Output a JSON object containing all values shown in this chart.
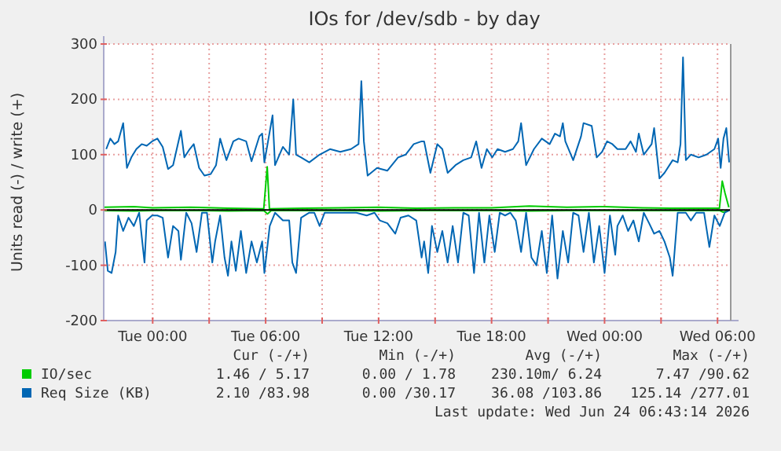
{
  "chart_data": {
    "type": "line",
    "title": "IOs for /dev/sdb - by day",
    "ylabel": "Units read (-) / write (+)",
    "xlim": [
      "2026-06-22T21:24",
      "2026-06-24T06:42"
    ],
    "xticks": [
      {
        "value": "2026-06-23T00:00",
        "label": "Tue 00:00"
      },
      {
        "value": "2026-06-23T03:00",
        "label": null
      },
      {
        "value": "2026-06-23T06:00",
        "label": "Tue 06:00"
      },
      {
        "value": "2026-06-23T09:00",
        "label": null
      },
      {
        "value": "2026-06-23T12:00",
        "label": "Tue 12:00"
      },
      {
        "value": "2026-06-23T15:00",
        "label": null
      },
      {
        "value": "2026-06-23T18:00",
        "label": "Tue 18:00"
      },
      {
        "value": "2026-06-23T21:00",
        "label": null
      },
      {
        "value": "2026-06-24T00:00",
        "label": "Wed 00:00"
      },
      {
        "value": "2026-06-24T03:00",
        "label": null
      },
      {
        "value": "2026-06-24T06:00",
        "label": "Wed 06:00"
      }
    ],
    "ylim": [
      -200,
      300
    ],
    "yticks": [
      -200,
      -100,
      0,
      100,
      200,
      300
    ],
    "grid": true,
    "legend": "bottom",
    "marker": "none",
    "line_style": "solid",
    "ref_lines": [
      {
        "axis": "y",
        "value": 0,
        "label": null,
        "color": "#000000"
      }
    ],
    "series": [
      {
        "color": "#00cc00",
        "x": [
          "2026-06-22T21:24",
          "2026-06-22T23:00",
          "2026-06-23T00:00",
          "2026-06-23T02:00",
          "2026-06-23T04:00",
          "2026-06-23T05:54",
          "2026-06-23T06:06",
          "2026-06-23T06:18",
          "2026-06-23T08:00",
          "2026-06-23T10:00",
          "2026-06-23T12:00",
          "2026-06-23T14:00",
          "2026-06-23T16:00",
          "2026-06-23T18:00",
          "2026-06-23T20:00",
          "2026-06-23T22:00",
          "2026-06-24T00:00",
          "2026-06-24T02:00",
          "2026-06-24T04:00",
          "2026-06-24T06:06",
          "2026-06-24T06:18",
          "2026-06-24T06:36"
        ],
        "values": [
          -1,
          -2,
          -1,
          -1,
          -2,
          -1,
          -7,
          -1,
          -1,
          -1,
          -2,
          -1,
          -1,
          -1,
          -2,
          -1,
          -1,
          -1,
          -1,
          -1,
          -4,
          -1
        ]
      },
      {
        "name": "IO/sec",
        "color": "#00cc00",
        "x": [
          "2026-06-22T21:24",
          "2026-06-22T23:00",
          "2026-06-23T00:00",
          "2026-06-23T02:00",
          "2026-06-23T04:00",
          "2026-06-23T05:54",
          "2026-06-23T06:05",
          "2026-06-23T06:12",
          "2026-06-23T08:00",
          "2026-06-23T10:00",
          "2026-06-23T12:00",
          "2026-06-23T14:00",
          "2026-06-23T16:00",
          "2026-06-23T18:00",
          "2026-06-23T20:00",
          "2026-06-23T22:00",
          "2026-06-24T00:00",
          "2026-06-24T02:00",
          "2026-06-24T03:30",
          "2026-06-24T05:00",
          "2026-06-24T06:06",
          "2026-06-24T06:15",
          "2026-06-24T06:24",
          "2026-06-24T06:36"
        ],
        "values": [
          5,
          6,
          4,
          5,
          3,
          2,
          78,
          2,
          3,
          4,
          5,
          3,
          4,
          4,
          7,
          5,
          6,
          4,
          3,
          3,
          3,
          52,
          30,
          5
        ]
      },
      {
        "color": "#0066b3",
        "x": [
          "2026-06-22T21:28",
          "2026-06-22T21:37",
          "2026-06-22T21:49",
          "2026-06-22T22:02",
          "2026-06-22T22:10",
          "2026-06-22T22:26",
          "2026-06-22T22:43",
          "2026-06-22T23:00",
          "2026-06-22T23:17",
          "2026-06-22T23:34",
          "2026-06-22T23:41",
          "2026-06-22T23:58",
          "2026-06-23T00:15",
          "2026-06-23T00:32",
          "2026-06-23T00:49",
          "2026-06-23T01:05",
          "2026-06-23T01:22",
          "2026-06-23T01:30",
          "2026-06-23T01:47",
          "2026-06-23T02:04",
          "2026-06-23T02:20",
          "2026-06-23T02:37",
          "2026-06-23T02:53",
          "2026-06-23T03:10",
          "2026-06-23T03:19",
          "2026-06-23T03:35",
          "2026-06-23T03:49",
          "2026-06-23T04:00",
          "2026-06-23T04:11",
          "2026-06-23T04:25",
          "2026-06-23T04:41",
          "2026-06-23T04:58",
          "2026-06-23T05:15",
          "2026-06-23T05:32",
          "2026-06-23T05:49",
          "2026-06-23T05:56",
          "2026-06-23T06:13",
          "2026-06-23T06:30",
          "2026-06-23T06:55",
          "2026-06-23T07:15",
          "2026-06-23T07:25",
          "2026-06-23T07:37",
          "2026-06-23T07:53",
          "2026-06-23T08:19",
          "2026-06-23T08:35",
          "2026-06-23T08:52",
          "2026-06-23T09:08",
          "2026-06-23T09:41",
          "2026-06-23T10:15",
          "2026-06-23T10:49",
          "2026-06-23T11:22",
          "2026-06-23T11:47",
          "2026-06-23T12:04",
          "2026-06-23T12:28",
          "2026-06-23T12:53",
          "2026-06-23T13:10",
          "2026-06-23T13:35",
          "2026-06-23T14:00",
          "2026-06-23T14:17",
          "2026-06-23T14:25",
          "2026-06-23T14:38",
          "2026-06-23T14:50",
          "2026-06-23T15:07",
          "2026-06-23T15:23",
          "2026-06-23T15:40",
          "2026-06-23T15:56",
          "2026-06-23T16:13",
          "2026-06-23T16:30",
          "2026-06-23T16:47",
          "2026-06-23T17:04",
          "2026-06-23T17:20",
          "2026-06-23T17:37",
          "2026-06-23T17:53",
          "2026-06-23T18:10",
          "2026-06-23T18:26",
          "2026-06-23T18:43",
          "2026-06-23T19:00",
          "2026-06-23T19:17",
          "2026-06-23T19:34",
          "2026-06-23T19:50",
          "2026-06-23T20:07",
          "2026-06-23T20:23",
          "2026-06-23T20:40",
          "2026-06-23T20:56",
          "2026-06-23T21:13",
          "2026-06-23T21:30",
          "2026-06-23T21:47",
          "2026-06-23T22:04",
          "2026-06-23T22:20",
          "2026-06-23T22:37",
          "2026-06-23T22:53",
          "2026-06-23T23:10",
          "2026-06-23T23:26",
          "2026-06-23T23:43",
          "2026-06-24T00:00",
          "2026-06-24T00:17",
          "2026-06-24T00:34",
          "2026-06-24T00:41",
          "2026-06-24T00:58",
          "2026-06-24T01:15",
          "2026-06-24T01:32",
          "2026-06-24T01:49",
          "2026-06-24T02:05",
          "2026-06-24T02:22",
          "2026-06-24T02:38",
          "2026-06-24T02:55",
          "2026-06-24T03:11",
          "2026-06-24T03:28",
          "2026-06-24T03:37",
          "2026-06-24T03:53",
          "2026-06-24T04:19",
          "2026-06-24T04:35",
          "2026-06-24T04:52",
          "2026-06-24T05:17",
          "2026-06-24T05:34",
          "2026-06-24T05:50",
          "2026-06-24T06:07",
          "2026-06-24T06:23",
          "2026-06-24T06:40"
        ],
        "values": [
          -57,
          -110,
          -114,
          -76,
          -10,
          -38,
          -14,
          -29,
          -5,
          -95,
          -19,
          -10,
          -10,
          -14,
          -86,
          -29,
          -38,
          -90,
          -5,
          -24,
          -76,
          -5,
          -5,
          -95,
          -57,
          -10,
          -86,
          -119,
          -57,
          -110,
          -38,
          -114,
          -57,
          -95,
          -57,
          -114,
          -29,
          -5,
          -19,
          -19,
          -95,
          -114,
          -14,
          -5,
          -5,
          -29,
          -5,
          -5,
          -5,
          -5,
          -10,
          -5,
          -19,
          -24,
          -43,
          -14,
          -10,
          -19,
          -86,
          -57,
          -114,
          -29,
          -76,
          -38,
          -95,
          -29,
          -95,
          -5,
          -10,
          -114,
          -5,
          -95,
          -10,
          -76,
          -5,
          -10,
          -5,
          -19,
          -76,
          -5,
          -86,
          -100,
          -38,
          -114,
          -10,
          -124,
          -38,
          -95,
          -5,
          -10,
          -76,
          -5,
          -95,
          -29,
          -114,
          -10,
          -81,
          -29,
          -10,
          -38,
          -19,
          -57,
          -5,
          -24,
          -43,
          -38,
          -57,
          -86,
          -119,
          -5,
          -5,
          -19,
          -5,
          -5,
          -67,
          -10,
          -29,
          -5,
          0
        ]
      },
      {
        "name": "Req Size (KB)",
        "color": "#0066b3",
        "x": [
          "2026-06-22T21:32",
          "2026-06-22T21:45",
          "2026-06-22T21:58",
          "2026-06-22T22:10",
          "2026-06-22T22:26",
          "2026-06-22T22:38",
          "2026-06-22T22:52",
          "2026-06-22T23:08",
          "2026-06-22T23:25",
          "2026-06-22T23:41",
          "2026-06-22T23:58",
          "2026-06-23T00:15",
          "2026-06-23T00:32",
          "2026-06-23T00:49",
          "2026-06-23T01:05",
          "2026-06-23T01:30",
          "2026-06-23T01:41",
          "2026-06-23T01:58",
          "2026-06-23T02:11",
          "2026-06-23T02:28",
          "2026-06-23T02:45",
          "2026-06-23T03:05",
          "2026-06-23T03:22",
          "2026-06-23T03:35",
          "2026-06-23T03:55",
          "2026-06-23T04:17",
          "2026-06-23T04:34",
          "2026-06-23T04:58",
          "2026-06-23T05:15",
          "2026-06-23T05:40",
          "2026-06-23T05:49",
          "2026-06-23T05:56",
          "2026-06-23T06:22",
          "2026-06-23T06:30",
          "2026-06-23T06:55",
          "2026-06-23T07:15",
          "2026-06-23T07:28",
          "2026-06-23T07:37",
          "2026-06-23T07:53",
          "2026-06-23T08:19",
          "2026-06-23T08:52",
          "2026-06-23T09:25",
          "2026-06-23T09:58",
          "2026-06-23T10:32",
          "2026-06-23T10:56",
          "2026-06-23T11:05",
          "2026-06-23T11:13",
          "2026-06-23T11:25",
          "2026-06-23T11:55",
          "2026-06-23T12:28",
          "2026-06-23T13:02",
          "2026-06-23T13:26",
          "2026-06-23T13:52",
          "2026-06-23T14:17",
          "2026-06-23T14:25",
          "2026-06-23T14:45",
          "2026-06-23T15:07",
          "2026-06-23T15:23",
          "2026-06-23T15:40",
          "2026-06-23T16:05",
          "2026-06-23T16:30",
          "2026-06-23T16:55",
          "2026-06-23T17:11",
          "2026-06-23T17:28",
          "2026-06-23T17:45",
          "2026-06-23T18:02",
          "2026-06-23T18:19",
          "2026-06-23T18:43",
          "2026-06-23T19:08",
          "2026-06-23T19:25",
          "2026-06-23T19:34",
          "2026-06-23T19:50",
          "2026-06-23T20:15",
          "2026-06-23T20:40",
          "2026-06-23T21:05",
          "2026-06-23T21:22",
          "2026-06-23T21:38",
          "2026-06-23T21:47",
          "2026-06-23T21:55",
          "2026-06-23T22:20",
          "2026-06-23T22:45",
          "2026-06-23T22:53",
          "2026-06-23T23:19",
          "2026-06-23T23:35",
          "2026-06-23T23:52",
          "2026-06-24T00:08",
          "2026-06-24T00:25",
          "2026-06-24T00:41",
          "2026-06-24T01:07",
          "2026-06-24T01:23",
          "2026-06-24T01:40",
          "2026-06-24T01:49",
          "2026-06-24T02:05",
          "2026-06-24T02:30",
          "2026-06-24T02:38",
          "2026-06-24T02:55",
          "2026-06-24T03:11",
          "2026-06-24T03:37",
          "2026-06-24T03:53",
          "2026-06-24T04:02",
          "2026-06-24T04:10",
          "2026-06-24T04:19",
          "2026-06-24T04:35",
          "2026-06-24T05:00",
          "2026-06-24T05:25",
          "2026-06-24T05:50",
          "2026-06-24T06:02",
          "2026-06-24T06:10",
          "2026-06-24T06:19",
          "2026-06-24T06:28",
          "2026-06-24T06:37"
        ],
        "values": [
          110,
          129,
          119,
          124,
          157,
          76,
          95,
          110,
          119,
          116,
          124,
          129,
          114,
          74,
          81,
          143,
          95,
          110,
          119,
          76,
          62,
          65,
          81,
          129,
          90,
          124,
          129,
          124,
          88,
          133,
          138,
          86,
          171,
          81,
          114,
          100,
          200,
          100,
          95,
          86,
          100,
          110,
          105,
          110,
          119,
          233,
          124,
          62,
          76,
          71,
          95,
          100,
          119,
          124,
          124,
          67,
          119,
          110,
          67,
          81,
          90,
          95,
          124,
          76,
          110,
          95,
          110,
          105,
          110,
          124,
          157,
          81,
          110,
          129,
          119,
          138,
          133,
          157,
          124,
          90,
          133,
          157,
          152,
          95,
          105,
          124,
          119,
          110,
          110,
          124,
          105,
          138,
          100,
          119,
          148,
          57,
          67,
          90,
          86,
          119,
          276,
          90,
          100,
          95,
          100,
          110,
          129,
          76,
          129,
          148,
          86
        ]
      }
    ],
    "annotations": [
      "Cur (-/+)",
      "Min (-/+)",
      "Avg (-/+)",
      "Max (-/+)",
      "1.46 / 5.17",
      "0.00 / 1.78",
      "230.10m/ 6.24",
      "7.47 /90.62",
      "2.10 /83.98",
      "0.00 /30.17",
      "36.08 /103.86",
      "125.14 /277.01",
      "Last update: Wed Jun 24 06:43:14 2026"
    ]
  }
}
